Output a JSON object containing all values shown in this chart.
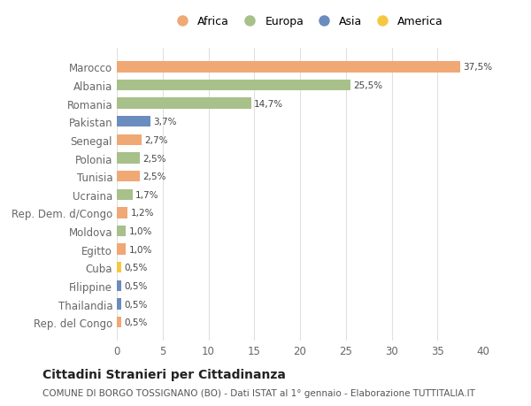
{
  "countries": [
    "Marocco",
    "Albania",
    "Romania",
    "Pakistan",
    "Senegal",
    "Polonia",
    "Tunisia",
    "Ucraina",
    "Rep. Dem. d/Congo",
    "Moldova",
    "Egitto",
    "Cuba",
    "Filippine",
    "Thailandia",
    "Rep. del Congo"
  ],
  "values": [
    37.5,
    25.5,
    14.7,
    3.7,
    2.7,
    2.5,
    2.5,
    1.7,
    1.2,
    1.0,
    1.0,
    0.5,
    0.5,
    0.5,
    0.5
  ],
  "labels": [
    "37,5%",
    "25,5%",
    "14,7%",
    "3,7%",
    "2,7%",
    "2,5%",
    "2,5%",
    "1,7%",
    "1,2%",
    "1,0%",
    "1,0%",
    "0,5%",
    "0,5%",
    "0,5%",
    "0,5%"
  ],
  "colors": [
    "#F0A875",
    "#A8C08A",
    "#A8C08A",
    "#6B8CBE",
    "#F0A875",
    "#A8C08A",
    "#F0A875",
    "#A8C08A",
    "#F0A875",
    "#A8C08A",
    "#F0A875",
    "#F5C842",
    "#6B8CBE",
    "#6B8CBE",
    "#F0A875"
  ],
  "continents": [
    "Africa",
    "Europa",
    "Asia",
    "America"
  ],
  "legend_colors": [
    "#F0A875",
    "#A8C08A",
    "#6B8CBE",
    "#F5C842"
  ],
  "title": "Cittadini Stranieri per Cittadinanza",
  "subtitle": "COMUNE DI BORGO TOSSIGNANO (BO) - Dati ISTAT al 1° gennaio - Elaborazione TUTTITALIA.IT",
  "xlim": [
    0,
    40
  ],
  "xticks": [
    0,
    5,
    10,
    15,
    20,
    25,
    30,
    35,
    40
  ],
  "bg_color": "#ffffff",
  "grid_color": "#e0e0e0",
  "bar_height": 0.6
}
